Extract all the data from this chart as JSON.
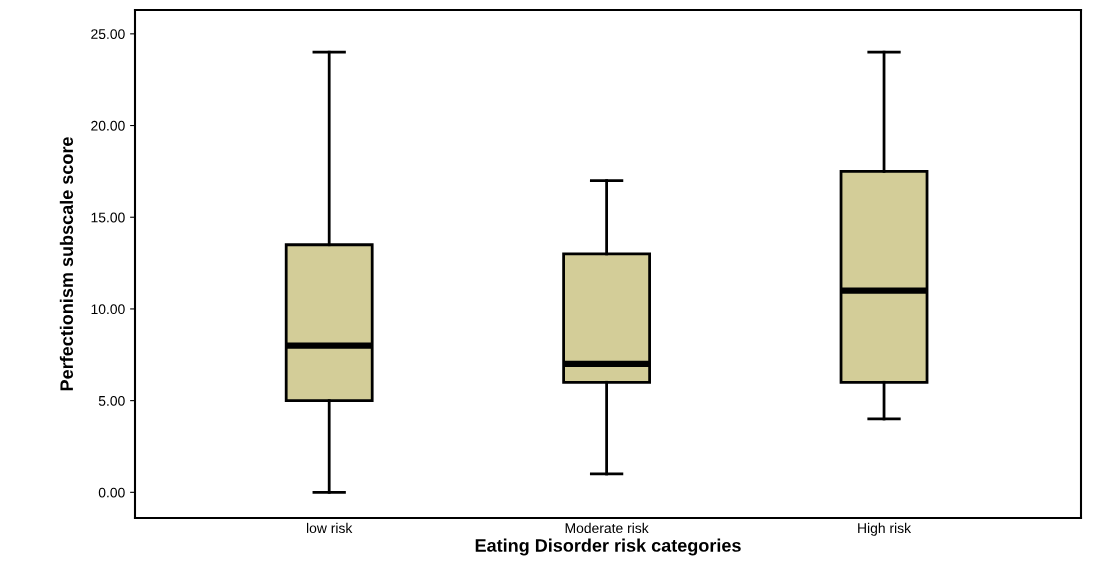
{
  "chart_data": {
    "type": "box",
    "xlabel": "Eating Disorder risk categories",
    "ylabel": "Perfectionism subscale score",
    "categories": [
      "low risk",
      "Moderate risk",
      "High risk"
    ],
    "color": "#d3cd98",
    "boxes": [
      {
        "low": 0,
        "q1": 5,
        "median": 8,
        "q3": 13.5,
        "high": 24
      },
      {
        "low": 1,
        "q1": 6,
        "median": 7,
        "q3": 13,
        "high": 17
      },
      {
        "low": 4,
        "q1": 6,
        "median": 11,
        "q3": 17.5,
        "high": 24
      }
    ],
    "ylim": [
      -1.4,
      26.3
    ],
    "yticks": [
      {
        "value": 0,
        "label": "0.00"
      },
      {
        "value": 5,
        "label": "5.00"
      },
      {
        "value": 10,
        "label": "10.00"
      },
      {
        "value": 15,
        "label": "15.00"
      },
      {
        "value": 20,
        "label": "20.00"
      },
      {
        "value": 25,
        "label": "25.00"
      }
    ],
    "grid": false,
    "legend": false
  }
}
